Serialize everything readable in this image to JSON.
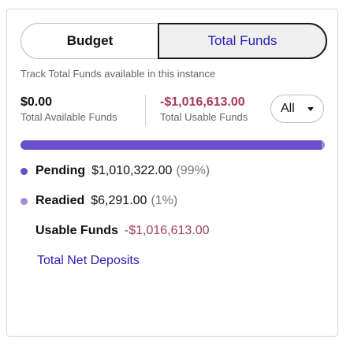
{
  "toggle": {
    "budget_label": "Budget",
    "total_funds_label": "Total Funds",
    "selected": "Total Funds"
  },
  "subtitle": "Track Total Funds available in this instance",
  "metrics": {
    "available_value": "$0.00",
    "available_label": "Total Available Funds",
    "usable_value": "-$1,016,613.00",
    "usable_label": "Total Usable Funds"
  },
  "filter": {
    "selected": "All"
  },
  "progress": {
    "pending_fraction": 0.99,
    "pending_color": "#6a4fcb",
    "readied_color": "#a78bd9"
  },
  "breakdown": {
    "pending": {
      "label": "Pending",
      "amount": "$1,010,322.00",
      "percent": "(99%)",
      "color": "#6a4fcb"
    },
    "readied": {
      "label": "Readied",
      "amount": "$6,291.00",
      "percent": "(1%)",
      "color": "#a78bd9"
    },
    "usable": {
      "label": "Usable Funds",
      "amount": "-$1,016,613.00"
    }
  },
  "link": {
    "label": "Total Net Deposits"
  },
  "colors": {
    "accent": "#2a1fb8",
    "negative": "#a13a5c"
  }
}
